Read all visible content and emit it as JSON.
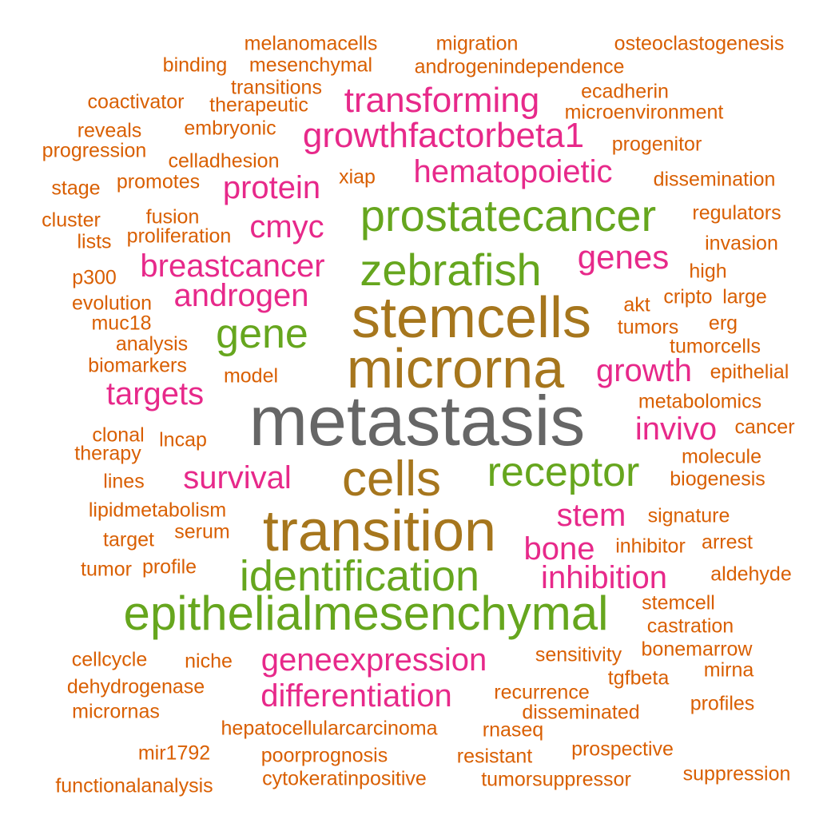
{
  "colors": {
    "orange": "#D95F02",
    "pink": "#E7298A",
    "green": "#66A61E",
    "brown": "#A6761D",
    "gray": "#666666"
  },
  "words": [
    {
      "text": "metastasis",
      "color": "#666666"
    },
    {
      "text": "microrna",
      "color": "#A6761D"
    },
    {
      "text": "stemcells",
      "color": "#A6761D"
    },
    {
      "text": "transition",
      "color": "#A6761D"
    },
    {
      "text": "cells",
      "color": "#A6761D"
    },
    {
      "text": "epithelialmesenchymal",
      "color": "#66A61E"
    },
    {
      "text": "identification",
      "color": "#66A61E"
    },
    {
      "text": "prostatecancer",
      "color": "#66A61E"
    },
    {
      "text": "zebrafish",
      "color": "#66A61E"
    },
    {
      "text": "receptor",
      "color": "#66A61E"
    },
    {
      "text": "gene",
      "color": "#66A61E"
    },
    {
      "text": "transforming",
      "color": "#E7298A"
    },
    {
      "text": "growthfactorbeta1",
      "color": "#E7298A"
    },
    {
      "text": "hematopoietic",
      "color": "#E7298A"
    },
    {
      "text": "protein",
      "color": "#E7298A"
    },
    {
      "text": "cmyc",
      "color": "#E7298A"
    },
    {
      "text": "breastcancer",
      "color": "#E7298A"
    },
    {
      "text": "genes",
      "color": "#E7298A"
    },
    {
      "text": "androgen",
      "color": "#E7298A"
    },
    {
      "text": "growth",
      "color": "#E7298A"
    },
    {
      "text": "targets",
      "color": "#E7298A"
    },
    {
      "text": "invivo",
      "color": "#E7298A"
    },
    {
      "text": "survival",
      "color": "#E7298A"
    },
    {
      "text": "stem",
      "color": "#E7298A"
    },
    {
      "text": "bone",
      "color": "#E7298A"
    },
    {
      "text": "inhibition",
      "color": "#E7298A"
    },
    {
      "text": "geneexpression",
      "color": "#E7298A"
    },
    {
      "text": "differentiation",
      "color": "#E7298A"
    },
    {
      "text": "melanomacells",
      "color": "#D95F02"
    },
    {
      "text": "migration",
      "color": "#D95F02"
    },
    {
      "text": "osteoclastogenesis",
      "color": "#D95F02"
    },
    {
      "text": "binding",
      "color": "#D95F02"
    },
    {
      "text": "mesenchymal",
      "color": "#D95F02"
    },
    {
      "text": "androgenindependence",
      "color": "#D95F02"
    },
    {
      "text": "transitions",
      "color": "#D95F02"
    },
    {
      "text": "ecadherin",
      "color": "#D95F02"
    },
    {
      "text": "coactivator",
      "color": "#D95F02"
    },
    {
      "text": "therapeutic",
      "color": "#D95F02"
    },
    {
      "text": "microenvironment",
      "color": "#D95F02"
    },
    {
      "text": "reveals",
      "color": "#D95F02"
    },
    {
      "text": "embryonic",
      "color": "#D95F02"
    },
    {
      "text": "progression",
      "color": "#D95F02"
    },
    {
      "text": "progenitor",
      "color": "#D95F02"
    },
    {
      "text": "celladhesion",
      "color": "#D95F02"
    },
    {
      "text": "stage",
      "color": "#D95F02"
    },
    {
      "text": "promotes",
      "color": "#D95F02"
    },
    {
      "text": "xiap",
      "color": "#D95F02"
    },
    {
      "text": "dissemination",
      "color": "#D95F02"
    },
    {
      "text": "cluster",
      "color": "#D95F02"
    },
    {
      "text": "fusion",
      "color": "#D95F02"
    },
    {
      "text": "regulators",
      "color": "#D95F02"
    },
    {
      "text": "lists",
      "color": "#D95F02"
    },
    {
      "text": "proliferation",
      "color": "#D95F02"
    },
    {
      "text": "invasion",
      "color": "#D95F02"
    },
    {
      "text": "p300",
      "color": "#D95F02"
    },
    {
      "text": "high",
      "color": "#D95F02"
    },
    {
      "text": "evolution",
      "color": "#D95F02"
    },
    {
      "text": "akt",
      "color": "#D95F02"
    },
    {
      "text": "cripto",
      "color": "#D95F02"
    },
    {
      "text": "large",
      "color": "#D95F02"
    },
    {
      "text": "muc18",
      "color": "#D95F02"
    },
    {
      "text": "tumors",
      "color": "#D95F02"
    },
    {
      "text": "erg",
      "color": "#D95F02"
    },
    {
      "text": "analysis",
      "color": "#D95F02"
    },
    {
      "text": "tumorcells",
      "color": "#D95F02"
    },
    {
      "text": "biomarkers",
      "color": "#D95F02"
    },
    {
      "text": "model",
      "color": "#D95F02"
    },
    {
      "text": "epithelial",
      "color": "#D95F02"
    },
    {
      "text": "metabolomics",
      "color": "#D95F02"
    },
    {
      "text": "clonal",
      "color": "#D95F02"
    },
    {
      "text": "lncap",
      "color": "#D95F02"
    },
    {
      "text": "cancer",
      "color": "#D95F02"
    },
    {
      "text": "therapy",
      "color": "#D95F02"
    },
    {
      "text": "molecule",
      "color": "#D95F02"
    },
    {
      "text": "lines",
      "color": "#D95F02"
    },
    {
      "text": "biogenesis",
      "color": "#D95F02"
    },
    {
      "text": "lipidmetabolism",
      "color": "#D95F02"
    },
    {
      "text": "signature",
      "color": "#D95F02"
    },
    {
      "text": "serum",
      "color": "#D95F02"
    },
    {
      "text": "target",
      "color": "#D95F02"
    },
    {
      "text": "inhibitor",
      "color": "#D95F02"
    },
    {
      "text": "arrest",
      "color": "#D95F02"
    },
    {
      "text": "tumor",
      "color": "#D95F02"
    },
    {
      "text": "profile",
      "color": "#D95F02"
    },
    {
      "text": "aldehyde",
      "color": "#D95F02"
    },
    {
      "text": "stemcell",
      "color": "#D95F02"
    },
    {
      "text": "castration",
      "color": "#D95F02"
    },
    {
      "text": "bonemarrow",
      "color": "#D95F02"
    },
    {
      "text": "sensitivity",
      "color": "#D95F02"
    },
    {
      "text": "cellcycle",
      "color": "#D95F02"
    },
    {
      "text": "niche",
      "color": "#D95F02"
    },
    {
      "text": "mirna",
      "color": "#D95F02"
    },
    {
      "text": "tgfbeta",
      "color": "#D95F02"
    },
    {
      "text": "dehydrogenase",
      "color": "#D95F02"
    },
    {
      "text": "recurrence",
      "color": "#D95F02"
    },
    {
      "text": "profiles",
      "color": "#D95F02"
    },
    {
      "text": "micrornas",
      "color": "#D95F02"
    },
    {
      "text": "disseminated",
      "color": "#D95F02"
    },
    {
      "text": "hepatocellularcarcinoma",
      "color": "#D95F02"
    },
    {
      "text": "rnaseq",
      "color": "#D95F02"
    },
    {
      "text": "mir1792",
      "color": "#D95F02"
    },
    {
      "text": "prospective",
      "color": "#D95F02"
    },
    {
      "text": "poorprognosis",
      "color": "#D95F02"
    },
    {
      "text": "resistant",
      "color": "#D95F02"
    },
    {
      "text": "suppression",
      "color": "#D95F02"
    },
    {
      "text": "cytokeratinpositive",
      "color": "#D95F02"
    },
    {
      "text": "tumorsuppressor",
      "color": "#D95F02"
    },
    {
      "text": "functionalanalysis",
      "color": "#D95F02"
    }
  ]
}
